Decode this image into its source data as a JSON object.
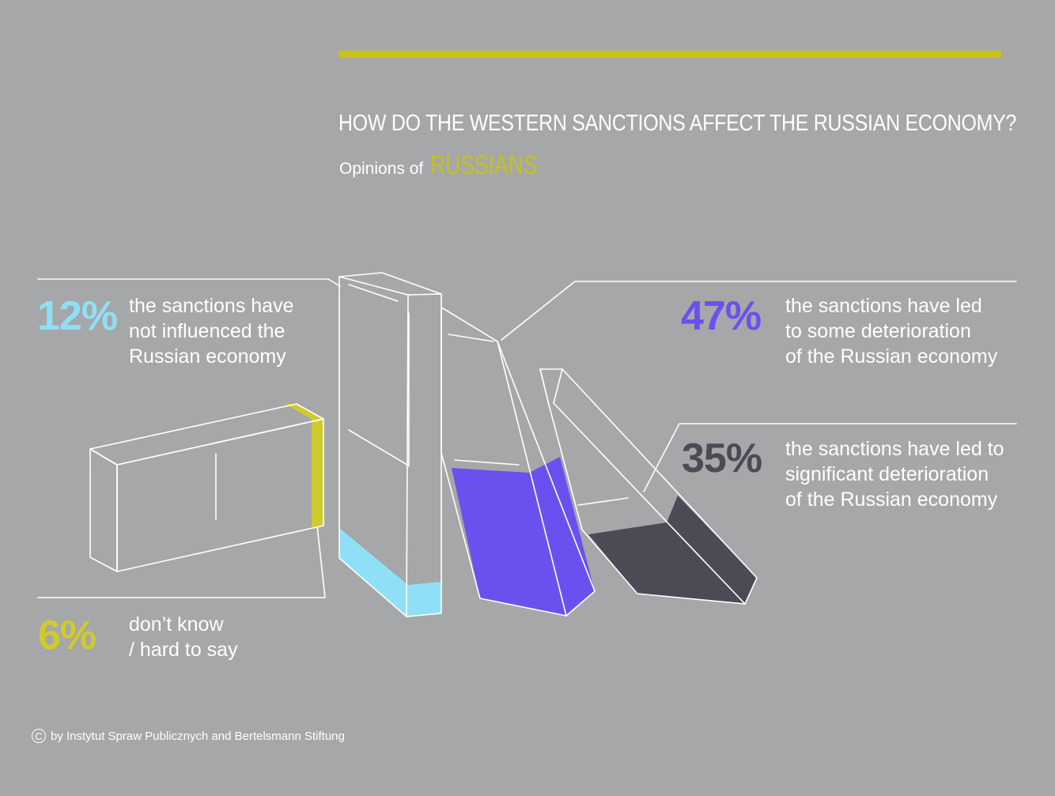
{
  "title": "HOW DO THE WESTERN SANCTIONS AFFECT THE RUSSIAN ECONOMY?",
  "subtitle": {
    "lead": "Opinions of",
    "highlight": "RUSSIANS"
  },
  "colors": {
    "background": "#a6a7a9",
    "accent": "#c6c11b",
    "not_influenced": "#8fe0f6",
    "some_deterioration": "#6a51ef",
    "significant_deterioration": "#4a4b55",
    "dont_know": "#d0cb2c"
  },
  "chart_data": {
    "type": "bar",
    "unit": "%",
    "categories": [
      "the sanctions have not influenced the Russian economy",
      "the sanctions have led to some deterioration of the Russian economy",
      "the sanctions have led to significant deterioration of the Russian economy",
      "don’t know / hard to say"
    ],
    "values": [
      12,
      47,
      35,
      6
    ]
  },
  "labels": {
    "not_influenced": {
      "pct": "12%",
      "lines": [
        "the sanctions have",
        "not influenced the",
        "Russian economy"
      ]
    },
    "some_deterioration": {
      "pct": "47%",
      "lines": [
        "the sanctions have led",
        "to some deterioration",
        "of the Russian economy"
      ]
    },
    "significant_deterioration": {
      "pct": "35%",
      "lines": [
        "the sanctions have led to",
        "significant deterioration",
        "of the Russian economy"
      ]
    },
    "dont_know": {
      "pct": "6%",
      "lines": [
        "don’t know",
        "/ hard to say"
      ]
    }
  },
  "footer": {
    "icon": "copyright-icon",
    "symbol": "C",
    "text": "by Instytut Spraw Publicznych and Bertelsmann Stiftung"
  }
}
